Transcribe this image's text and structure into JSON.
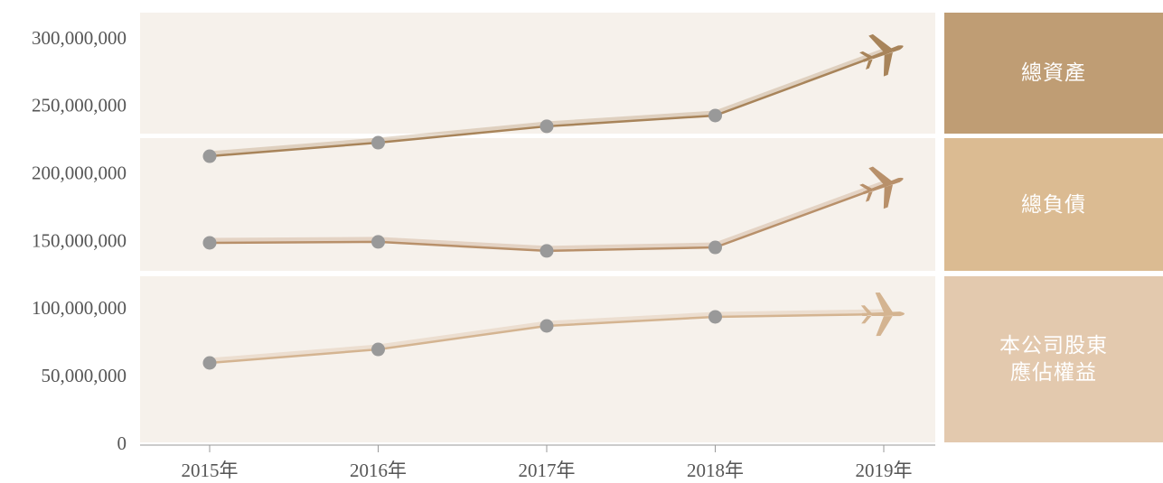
{
  "chart_data": {
    "type": "line",
    "categories": [
      "2015年",
      "2016年",
      "2017年",
      "2018年",
      "2019年"
    ],
    "series": [
      {
        "name": "總資產",
        "color": "#a8845a",
        "panel_color": "#bf9d74",
        "values": [
          213800000,
          223800000,
          235900000,
          243900000,
          290000000
        ]
      },
      {
        "name": "總負債",
        "color": "#b8906a",
        "panel_color": "#dbbb92",
        "values": [
          149700000,
          150400000,
          143700000,
          146300000,
          192000000
        ]
      },
      {
        "name": "本公司股東應佔權益",
        "color": "#d4b491",
        "panel_color": "#e3c9ae",
        "values": [
          60800000,
          70800000,
          88200000,
          94900000,
          96900000
        ]
      }
    ],
    "ylim": [
      0,
      320000000
    ],
    "yticks": [
      0,
      {
        "value": 50000000,
        "label": "50,000,000"
      },
      {
        "value": 100000000,
        "label": "100,000,000"
      },
      {
        "value": 150000000,
        "label": "150,000,000"
      },
      {
        "value": 200000000,
        "label": "200,000,000"
      },
      {
        "value": 250000000,
        "label": "250,000,000"
      },
      {
        "value": 300000000,
        "label": "300,000,000"
      }
    ],
    "marker_color": "#999999"
  }
}
